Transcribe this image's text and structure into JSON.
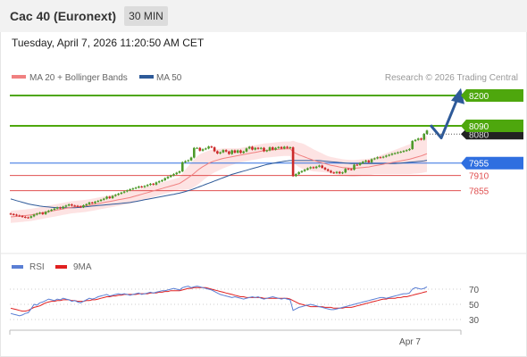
{
  "header": {
    "title": "Cac 40 (Euronext)",
    "interval": "30 MIN"
  },
  "datetime": "Tuesday, April 7, 2026 11:20:50 AM CET",
  "credit": "Research © 2026 Trading Central",
  "colors": {
    "ma20": "#f08080",
    "ma50": "#2e5a99",
    "bollinger_fill": "#fde0e0",
    "resistance": "#4ea70d",
    "current": "#2f6fe0",
    "support": "#e05050",
    "rsi": "#5a7fd4",
    "rsi_ma": "#e02020",
    "up_candle": "#4d9a2a",
    "down_candle": "#cc2a2a",
    "arrow": "#2e5a99"
  },
  "chart_data": [
    {
      "type": "candlestick",
      "name": "price",
      "legend": [
        {
          "label": "MA 20 + Bollinger Bands",
          "color": "#f08080"
        },
        {
          "label": "MA 50",
          "color": "#2e5a99"
        }
      ],
      "ylim": [
        7815,
        8230
      ],
      "levels": [
        {
          "value": 8200,
          "label": "8200",
          "kind": "resistance"
        },
        {
          "value": 8090,
          "label": "8090",
          "kind": "resistance"
        },
        {
          "value": 7955,
          "label": "7955",
          "kind": "current"
        },
        {
          "value": 7910,
          "label": "7910",
          "kind": "support"
        },
        {
          "value": 7855,
          "label": "7855",
          "kind": "support"
        }
      ],
      "hidden_label": "8080",
      "x_ticks": [
        "Apr 7"
      ],
      "close": [
        7770,
        7768,
        7765,
        7763,
        7760,
        7758,
        7757,
        7762,
        7768,
        7772,
        7775,
        7770,
        7778,
        7782,
        7786,
        7790,
        7794,
        7791,
        7797,
        7801,
        7805,
        7801,
        7800,
        7798,
        7795,
        7802,
        7806,
        7812,
        7810,
        7815,
        7818,
        7822,
        7826,
        7833,
        7828,
        7836,
        7840,
        7844,
        7848,
        7852,
        7856,
        7860,
        7863,
        7866,
        7870,
        7868,
        7872,
        7876,
        7880,
        7877,
        7885,
        7889,
        7893,
        7900,
        7905,
        7910,
        7915,
        7920,
        7925,
        7958,
        7962,
        7965,
        7975,
        8010,
        8010,
        8000,
        8005,
        8008,
        8015,
        8012,
        7998,
        7990,
        7994,
        8002,
        7997,
        7988,
        8001,
        7993,
        8001,
        7992,
        7997,
        8008,
        8014,
        8004,
        8010,
        8007,
        8010,
        7998,
        8001,
        8012,
        8004,
        8010,
        8013,
        8008,
        8014,
        8010,
        8012,
        7908,
        7915,
        7922,
        7926,
        7931,
        7936,
        7940,
        7937,
        7942,
        7946,
        7938,
        7932,
        7927,
        7921,
        7919,
        7923,
        7918,
        7921,
        7934,
        7933,
        7931,
        7949,
        7948,
        7955,
        7960,
        7964,
        7958,
        7969,
        7972,
        7976,
        7975,
        7978,
        7982,
        7985,
        7989,
        7991,
        7994,
        7996,
        7999,
        8002,
        8006,
        8035,
        8039,
        8044,
        8040,
        8061,
        8073
      ],
      "ma20": [
        7760,
        7761,
        7762,
        7763,
        7764,
        7765,
        7766,
        7767,
        7769,
        7771,
        7773,
        7775,
        7777,
        7779,
        7781,
        7783,
        7785,
        7787,
        7789,
        7791,
        7793,
        7795,
        7796,
        7797,
        7798,
        7799,
        7800,
        7802,
        7804,
        7806,
        7808,
        7810,
        7812,
        7814,
        7816,
        7818,
        7820,
        7822,
        7824,
        7826,
        7828,
        7830,
        7833,
        7836,
        7839,
        7842,
        7845,
        7848,
        7851,
        7854,
        7857,
        7860,
        7863,
        7866,
        7869,
        7872,
        7875,
        7878,
        7881,
        7888,
        7895,
        7902,
        7909,
        7918,
        7927,
        7935,
        7942,
        7948,
        7954,
        7959,
        7963,
        7966,
        7969,
        7972,
        7974,
        7976,
        7978,
        7980,
        7982,
        7984,
        7986,
        7988,
        7990,
        7992,
        7994,
        7996,
        7998,
        8000,
        8001,
        8002,
        8003,
        8004,
        8005,
        8006,
        8007,
        8007,
        8007,
        7996,
        7990,
        7985,
        7981,
        7977,
        7973,
        7969,
        7965,
        7962,
        7959,
        7956,
        7953,
        7950,
        7947,
        7945,
        7943,
        7941,
        7939,
        7938,
        7937,
        7936,
        7936,
        7937,
        7938,
        7939,
        7940,
        7941,
        7943,
        7945,
        7947,
        7949,
        7951,
        7953,
        7955,
        7957,
        7959,
        7961,
        7963,
        7965,
        7967,
        7969,
        7972,
        7975,
        7978,
        7981,
        7985,
        7989
      ],
      "ma50": [
        7825,
        7822,
        7819,
        7816,
        7813,
        7810,
        7807,
        7805,
        7803,
        7801,
        7799,
        7798,
        7797,
        7796,
        7795,
        7794,
        7793,
        7793,
        7793,
        7793,
        7793,
        7793,
        7793,
        7794,
        7795,
        7796,
        7797,
        7798,
        7799,
        7800,
        7801,
        7802,
        7803,
        7804,
        7805,
        7806,
        7807,
        7808,
        7809,
        7810,
        7811,
        7812,
        7814,
        7816,
        7818,
        7820,
        7822,
        7824,
        7826,
        7828,
        7830,
        7832,
        7834,
        7836,
        7838,
        7840,
        7842,
        7844,
        7846,
        7849,
        7852,
        7855,
        7858,
        7862,
        7866,
        7870,
        7874,
        7878,
        7882,
        7886,
        7890,
        7894,
        7898,
        7902,
        7906,
        7910,
        7914,
        7917,
        7920,
        7923,
        7926,
        7929,
        7932,
        7935,
        7938,
        7941,
        7944,
        7947,
        7950,
        7952,
        7954,
        7956,
        7958,
        7960,
        7962,
        7963,
        7964,
        7964,
        7964,
        7964,
        7964,
        7964,
        7964,
        7964,
        7964,
        7964,
        7964,
        7963,
        7962,
        7961,
        7960,
        7959,
        7958,
        7957,
        7956,
        7955,
        7954,
        7953,
        7953,
        7953,
        7953,
        7953,
        7953,
        7953,
        7953,
        7953,
        7953,
        7953,
        7953,
        7953,
        7953,
        7953,
        7953,
        7954,
        7955,
        7956,
        7957,
        7958,
        7959,
        7960,
        7961,
        7962,
        7963,
        7965
      ],
      "bb_width": [
        22,
        22,
        22,
        22,
        22,
        22,
        22,
        22,
        22,
        22,
        22,
        22,
        22,
        22,
        22,
        22,
        22,
        22,
        22,
        22,
        22,
        22,
        22,
        22,
        22,
        22,
        22,
        22,
        22,
        22,
        22,
        22,
        22,
        22,
        22,
        22,
        22,
        22,
        22,
        22,
        22,
        22,
        22,
        22,
        22,
        22,
        22,
        22,
        22,
        22,
        22,
        22,
        22,
        22,
        22,
        22,
        22,
        22,
        22,
        30,
        36,
        42,
        48,
        50,
        52,
        52,
        50,
        48,
        46,
        44,
        42,
        40,
        38,
        36,
        34,
        32,
        30,
        28,
        26,
        26,
        26,
        26,
        26,
        26,
        26,
        26,
        26,
        26,
        26,
        26,
        26,
        26,
        26,
        26,
        26,
        26,
        26,
        40,
        42,
        44,
        46,
        46,
        44,
        42,
        40,
        38,
        36,
        34,
        32,
        30,
        30,
        30,
        30,
        30,
        30,
        30,
        30,
        30,
        30,
        30,
        30,
        30,
        30,
        30,
        30,
        30,
        32,
        34,
        36,
        38,
        40,
        42,
        44,
        46,
        48,
        50,
        52,
        54,
        56,
        58,
        60,
        62,
        64,
        66
      ]
    },
    {
      "type": "line",
      "name": "rsi",
      "legend": [
        {
          "label": "RSI",
          "color": "#5a7fd4"
        },
        {
          "label": "9MA",
          "color": "#e02020"
        }
      ],
      "ylim": [
        20,
        80
      ],
      "y_ticks": [
        70,
        50,
        30
      ],
      "rsi": [
        38,
        37,
        36,
        35,
        36,
        38,
        39,
        44,
        50,
        49,
        52,
        53,
        55,
        57,
        56,
        55,
        57,
        56,
        58,
        57,
        56,
        54,
        55,
        53,
        52,
        54,
        56,
        58,
        57,
        58,
        60,
        61,
        62,
        63,
        61,
        62,
        63,
        64,
        63,
        64,
        63,
        62,
        63,
        64,
        65,
        63,
        64,
        65,
        66,
        65,
        66,
        67,
        68,
        68,
        69,
        70,
        71,
        70,
        69,
        72,
        73,
        74,
        72,
        73,
        74,
        73,
        72,
        71,
        70,
        69,
        67,
        65,
        63,
        62,
        61,
        60,
        59,
        60,
        59,
        58,
        57,
        58,
        59,
        60,
        59,
        60,
        58,
        57,
        58,
        59,
        60,
        59,
        58,
        57,
        58,
        57,
        56,
        42,
        44,
        46,
        47,
        48,
        49,
        50,
        49,
        48,
        47,
        46,
        45,
        44,
        43,
        43,
        44,
        45,
        46,
        47,
        48,
        49,
        50,
        51,
        52,
        53,
        54,
        55,
        56,
        57,
        58,
        59,
        59,
        58,
        59,
        60,
        61,
        62,
        63,
        64,
        64,
        65,
        70,
        72,
        71,
        70,
        71,
        73
      ],
      "ma9": [
        45,
        44,
        43,
        42,
        41,
        41,
        42,
        44,
        46,
        47,
        48,
        50,
        52,
        53,
        54,
        54,
        55,
        55,
        56,
        56,
        56,
        55,
        55,
        54,
        54,
        54,
        55,
        55,
        56,
        56,
        57,
        58,
        59,
        60,
        60,
        61,
        61,
        62,
        62,
        63,
        63,
        63,
        63,
        63,
        64,
        64,
        64,
        64,
        65,
        65,
        65,
        66,
        66,
        67,
        67,
        68,
        68,
        68,
        68,
        69,
        70,
        71,
        71,
        72,
        72,
        72,
        72,
        72,
        71,
        70,
        69,
        68,
        67,
        66,
        65,
        64,
        63,
        62,
        61,
        60,
        60,
        59,
        59,
        59,
        59,
        59,
        59,
        58,
        58,
        58,
        58,
        58,
        58,
        58,
        58,
        58,
        57,
        55,
        53,
        51,
        50,
        49,
        48,
        47,
        47,
        47,
        47,
        47,
        46,
        46,
        46,
        45,
        45,
        45,
        45,
        46,
        46,
        46,
        47,
        48,
        49,
        50,
        51,
        52,
        53,
        54,
        55,
        56,
        57,
        57,
        58,
        58,
        58,
        59,
        59,
        60,
        60,
        61,
        62,
        63,
        64,
        65,
        66,
        67
      ]
    }
  ]
}
